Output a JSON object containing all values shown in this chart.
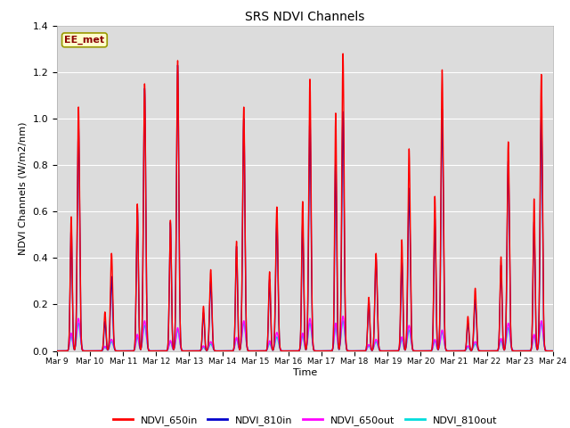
{
  "title": "SRS NDVI Channels",
  "xlabel": "Time",
  "ylabel": "NDVI Channels (W/m2/nm)",
  "ylim": [
    0,
    1.4
  ],
  "annotation": "EE_met",
  "bg_color": "#dcdcdc",
  "grid_color": "#ffffff",
  "series": {
    "NDVI_650in": {
      "color": "#ff0000",
      "lw": 1.0
    },
    "NDVI_810in": {
      "color": "#0000cc",
      "lw": 1.0
    },
    "NDVI_650out": {
      "color": "#ff00ff",
      "lw": 1.0
    },
    "NDVI_810out": {
      "color": "#00dddd",
      "lw": 1.0
    }
  },
  "xtick_labels": [
    "Mar 9",
    "Mar 10",
    "Mar 11",
    "Mar 12",
    "Mar 13",
    "Mar 14",
    "Mar 15",
    "Mar 16",
    "Mar 17",
    "Mar 18",
    "Mar 19",
    "Mar 20",
    "Mar 21",
    "Mar 22",
    "Mar 23",
    "Mar 24"
  ],
  "n_days": 15,
  "peaks": {
    "650in": [
      1.05,
      0.42,
      1.15,
      1.25,
      0.35,
      1.05,
      0.62,
      1.17,
      1.28,
      0.42,
      0.87,
      1.21,
      0.27,
      0.9,
      1.19
    ],
    "810in": [
      0.97,
      0.32,
      1.13,
      1.23,
      0.3,
      1.0,
      0.56,
      1.0,
      1.03,
      0.4,
      0.7,
      1.04,
      0.22,
      0.82,
      1.01
    ],
    "650out": [
      0.14,
      0.05,
      0.13,
      0.1,
      0.04,
      0.13,
      0.08,
      0.14,
      0.15,
      0.05,
      0.11,
      0.09,
      0.04,
      0.12,
      0.13
    ],
    "810out": [
      0.12,
      0.04,
      0.11,
      0.09,
      0.03,
      0.12,
      0.06,
      0.12,
      0.13,
      0.04,
      0.09,
      0.08,
      0.03,
      0.1,
      0.12
    ]
  },
  "peak2_ratio": [
    0.55,
    0.4,
    0.55,
    0.45,
    0.55,
    0.45,
    0.55,
    0.55,
    0.8,
    0.55,
    0.55,
    0.55,
    0.55,
    0.45,
    0.55
  ],
  "peak2_offset": [
    0.22,
    0.2,
    0.22,
    0.22,
    0.22,
    0.22,
    0.22,
    0.22,
    0.22,
    0.22,
    0.22,
    0.22,
    0.22,
    0.22,
    0.22
  ],
  "sigma_main": 0.035,
  "sigma2": 0.03,
  "out_sigma_main": 0.05,
  "out_sigma2": 0.04
}
